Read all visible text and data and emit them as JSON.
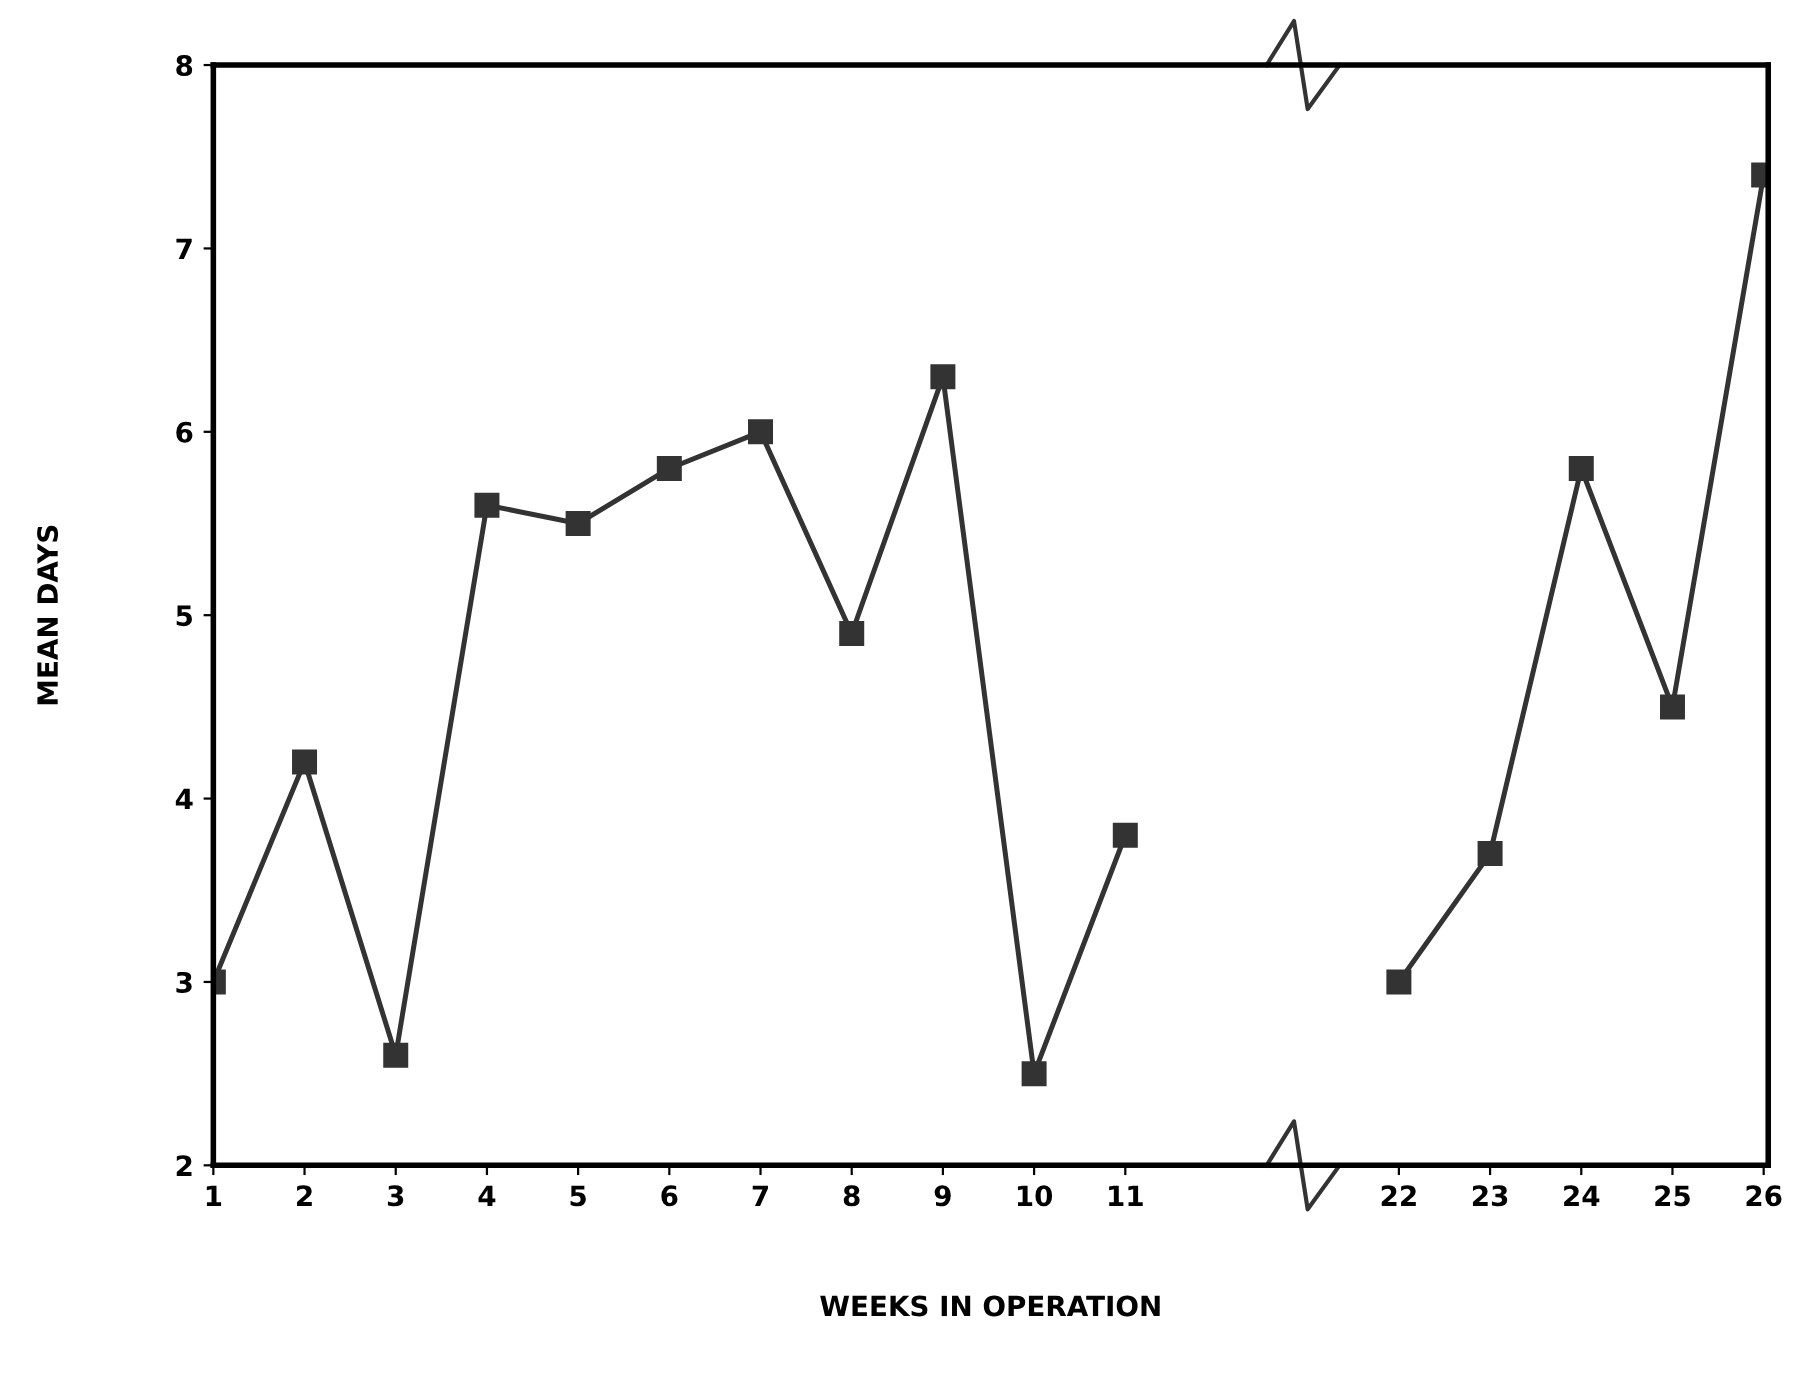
{
  "chart_data": {
    "type": "line",
    "xlabel": "WEEKS IN OPERATION",
    "ylabel": "MEAN DAYS",
    "categories": [
      "1",
      "2",
      "3",
      "4",
      "5",
      "6",
      "7",
      "8",
      "9",
      "10",
      "11",
      null,
      null,
      "22",
      "23",
      "24",
      "25",
      "26"
    ],
    "series": [
      {
        "color": "#333333",
        "values": [
          3.0,
          4.2,
          2.6,
          5.6,
          5.5,
          5.8,
          6.0,
          4.9,
          6.3,
          2.5,
          3.8,
          null,
          null,
          3.0,
          3.7,
          5.8,
          4.5,
          7.4
        ]
      }
    ],
    "ylim": [
      2,
      8
    ],
    "yticks": [
      2,
      3,
      4,
      5,
      6,
      7,
      8
    ],
    "marker": "square",
    "line_style": "solid",
    "grid": false,
    "legend": false
  }
}
